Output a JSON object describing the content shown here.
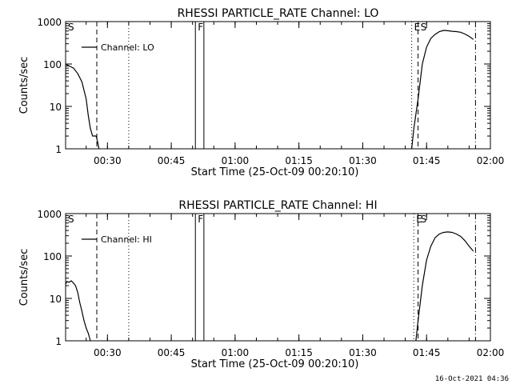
{
  "timestamp": "16-Oct-2021 04:36",
  "chart_data": [
    {
      "type": "line",
      "title": "RHESSI PARTICLE_RATE Channel: LO",
      "xlabel": "Start Time (25-Oct-09 00:20:10)",
      "ylabel": "Counts/sec",
      "x_unit": "time (hh:mm)",
      "xlim": [
        "00:20:10",
        "02:00:00"
      ],
      "ylim": [
        1,
        1000
      ],
      "yscale": "log",
      "x_ticks": [
        "00:30",
        "00:45",
        "01:00",
        "01:15",
        "01:30",
        "01:45",
        "02:00"
      ],
      "y_ticks": [
        "1",
        "10",
        "100",
        "1000"
      ],
      "legend": {
        "placement": "top-left",
        "entries": [
          "Channel: LO"
        ]
      },
      "series": [
        {
          "name": "Channel: LO",
          "x": [
            "00:20:10",
            "00:21:00",
            "00:22:00",
            "00:23:00",
            "00:24:00",
            "00:25:00",
            "00:25:30",
            "00:26:00",
            "00:26:30",
            "00:27:00",
            "00:27:20",
            "00:27:40",
            "00:28:00"
          ],
          "y": [
            100,
            90,
            80,
            60,
            38,
            15,
            6,
            3,
            2,
            2,
            2,
            1.5,
            1
          ]
        },
        {
          "name": "",
          "x": [
            "01:41:30",
            "01:42:00",
            "01:43:00",
            "01:44:00",
            "01:45:00",
            "01:46:00",
            "01:47:00",
            "01:48:00",
            "01:49:00",
            "01:50:00",
            "01:51:00",
            "01:52:00",
            "01:53:00",
            "01:54:00",
            "01:55:00",
            "01:56:00"
          ],
          "y": [
            1,
            3,
            15,
            100,
            250,
            400,
            500,
            580,
            620,
            610,
            590,
            580,
            560,
            510,
            450,
            380
          ]
        }
      ],
      "annotations": [
        {
          "label": "S",
          "x": "00:20:10",
          "style": "solid"
        },
        {
          "label": "",
          "x": "00:27:30",
          "style": "dashed"
        },
        {
          "label": "",
          "x": "00:35:00",
          "style": "dotted"
        },
        {
          "label": "F",
          "x": "00:50:40",
          "style": "solid"
        },
        {
          "label": "",
          "x": "00:52:40",
          "style": "solid"
        },
        {
          "label": "E",
          "x": "01:41:30",
          "style": "dotted"
        },
        {
          "label": "S",
          "x": "01:43:00",
          "style": "dashed"
        },
        {
          "label": "",
          "x": "01:56:30",
          "style": "dash-dot"
        }
      ]
    },
    {
      "type": "line",
      "title": "RHESSI PARTICLE_RATE Channel: HI",
      "xlabel": "Start Time (25-Oct-09 00:20:10)",
      "ylabel": "Counts/sec",
      "x_unit": "time (hh:mm)",
      "xlim": [
        "00:20:10",
        "02:00:00"
      ],
      "ylim": [
        1,
        1000
      ],
      "yscale": "log",
      "x_ticks": [
        "00:30",
        "00:45",
        "01:00",
        "01:15",
        "01:30",
        "01:45",
        "02:00"
      ],
      "y_ticks": [
        "1",
        "10",
        "100",
        "1000"
      ],
      "legend": {
        "placement": "top-left",
        "entries": [
          "Channel: HI"
        ]
      },
      "series": [
        {
          "name": "Channel: HI",
          "x": [
            "00:20:10",
            "00:20:30",
            "00:21:00",
            "00:21:30",
            "00:22:00",
            "00:22:30",
            "00:23:00",
            "00:23:30",
            "00:24:00",
            "00:24:30",
            "00:25:00",
            "00:25:30",
            "00:26:00"
          ],
          "y": [
            22,
            25,
            24,
            26,
            23,
            20,
            14,
            8,
            5,
            3,
            2,
            1.5,
            1
          ]
        },
        {
          "name": "",
          "x": [
            "01:42:30",
            "01:43:00",
            "01:44:00",
            "01:45:00",
            "01:46:00",
            "01:47:00",
            "01:48:00",
            "01:49:00",
            "01:50:00",
            "01:51:00",
            "01:52:00",
            "01:53:00",
            "01:54:00",
            "01:55:00",
            "01:56:00"
          ],
          "y": [
            1,
            3,
            20,
            80,
            170,
            270,
            330,
            360,
            370,
            360,
            330,
            290,
            230,
            170,
            130
          ]
        }
      ],
      "annotations": [
        {
          "label": "S",
          "x": "00:20:10",
          "style": "solid"
        },
        {
          "label": "",
          "x": "00:27:30",
          "style": "dashed"
        },
        {
          "label": "",
          "x": "00:35:00",
          "style": "dotted"
        },
        {
          "label": "F",
          "x": "00:50:40",
          "style": "solid"
        },
        {
          "label": "",
          "x": "00:52:40",
          "style": "solid"
        },
        {
          "label": "E",
          "x": "01:42:00",
          "style": "dotted"
        },
        {
          "label": "S",
          "x": "01:43:00",
          "style": "dashed"
        },
        {
          "label": "",
          "x": "01:56:30",
          "style": "dash-dot"
        }
      ]
    }
  ]
}
